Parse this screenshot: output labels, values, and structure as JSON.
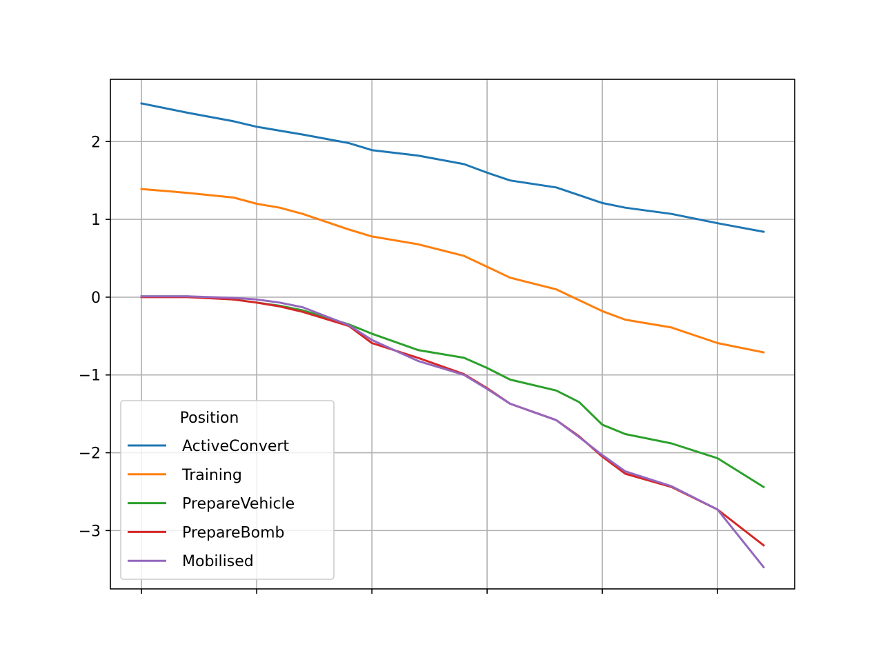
{
  "chart_data": {
    "type": "line",
    "title": "",
    "xlabel": "",
    "ylabel": "",
    "x": [
      0,
      0.4,
      0.8,
      1,
      1.2,
      1.4,
      1.8,
      2,
      2.4,
      2.8,
      3,
      3.2,
      3.6,
      3.8,
      4,
      4.2,
      4.6,
      5,
      5.4
    ],
    "xlim": [
      -0.27,
      5.67
    ],
    "xticks": [
      0,
      1,
      2,
      3,
      4,
      5
    ],
    "xtick_labels": [
      "",
      "",
      "",
      "",
      "",
      ""
    ],
    "ylim": [
      -3.75,
      2.8
    ],
    "yticks": [
      -3,
      -2,
      -1,
      0,
      1,
      2
    ],
    "ytick_labels": [
      "−3",
      "−2",
      "−1",
      "0",
      "1",
      "2"
    ],
    "grid": true,
    "legend": {
      "title": "Position",
      "location": "lower-left"
    },
    "series": [
      {
        "name": "ActiveConvert",
        "color": "#1f77b4",
        "values": [
          2.49,
          2.37,
          2.26,
          2.19,
          2.14,
          2.09,
          1.98,
          1.89,
          1.82,
          1.71,
          1.6,
          1.5,
          1.41,
          1.31,
          1.21,
          1.15,
          1.07,
          0.95,
          0.84
        ]
      },
      {
        "name": "Training",
        "color": "#ff7f0e",
        "values": [
          1.39,
          1.34,
          1.28,
          1.2,
          1.15,
          1.07,
          0.87,
          0.78,
          0.68,
          0.53,
          0.39,
          0.25,
          0.1,
          -0.04,
          -0.18,
          -0.29,
          -0.39,
          -0.59,
          -0.71
        ]
      },
      {
        "name": "PrepareVehicle",
        "color": "#2ca02c",
        "values": [
          0.01,
          0.01,
          -0.03,
          -0.07,
          -0.11,
          -0.17,
          -0.35,
          -0.47,
          -0.68,
          -0.78,
          -0.91,
          -1.06,
          -1.2,
          -1.35,
          -1.64,
          -1.76,
          -1.88,
          -2.07,
          -2.44
        ]
      },
      {
        "name": "PrepareBomb",
        "color": "#d62728",
        "values": [
          0.0,
          0.0,
          -0.03,
          -0.07,
          -0.12,
          -0.19,
          -0.37,
          -0.59,
          -0.78,
          -0.99,
          -1.17,
          -1.37,
          -1.58,
          -1.79,
          -2.05,
          -2.27,
          -2.44,
          -2.73,
          -3.19
        ]
      },
      {
        "name": "Mobilised",
        "color": "#9467bd",
        "values": [
          0.01,
          0.01,
          -0.01,
          -0.03,
          -0.07,
          -0.13,
          -0.36,
          -0.55,
          -0.82,
          -1.0,
          -1.18,
          -1.37,
          -1.58,
          -1.8,
          -2.03,
          -2.24,
          -2.43,
          -2.73,
          -3.47
        ]
      }
    ]
  }
}
